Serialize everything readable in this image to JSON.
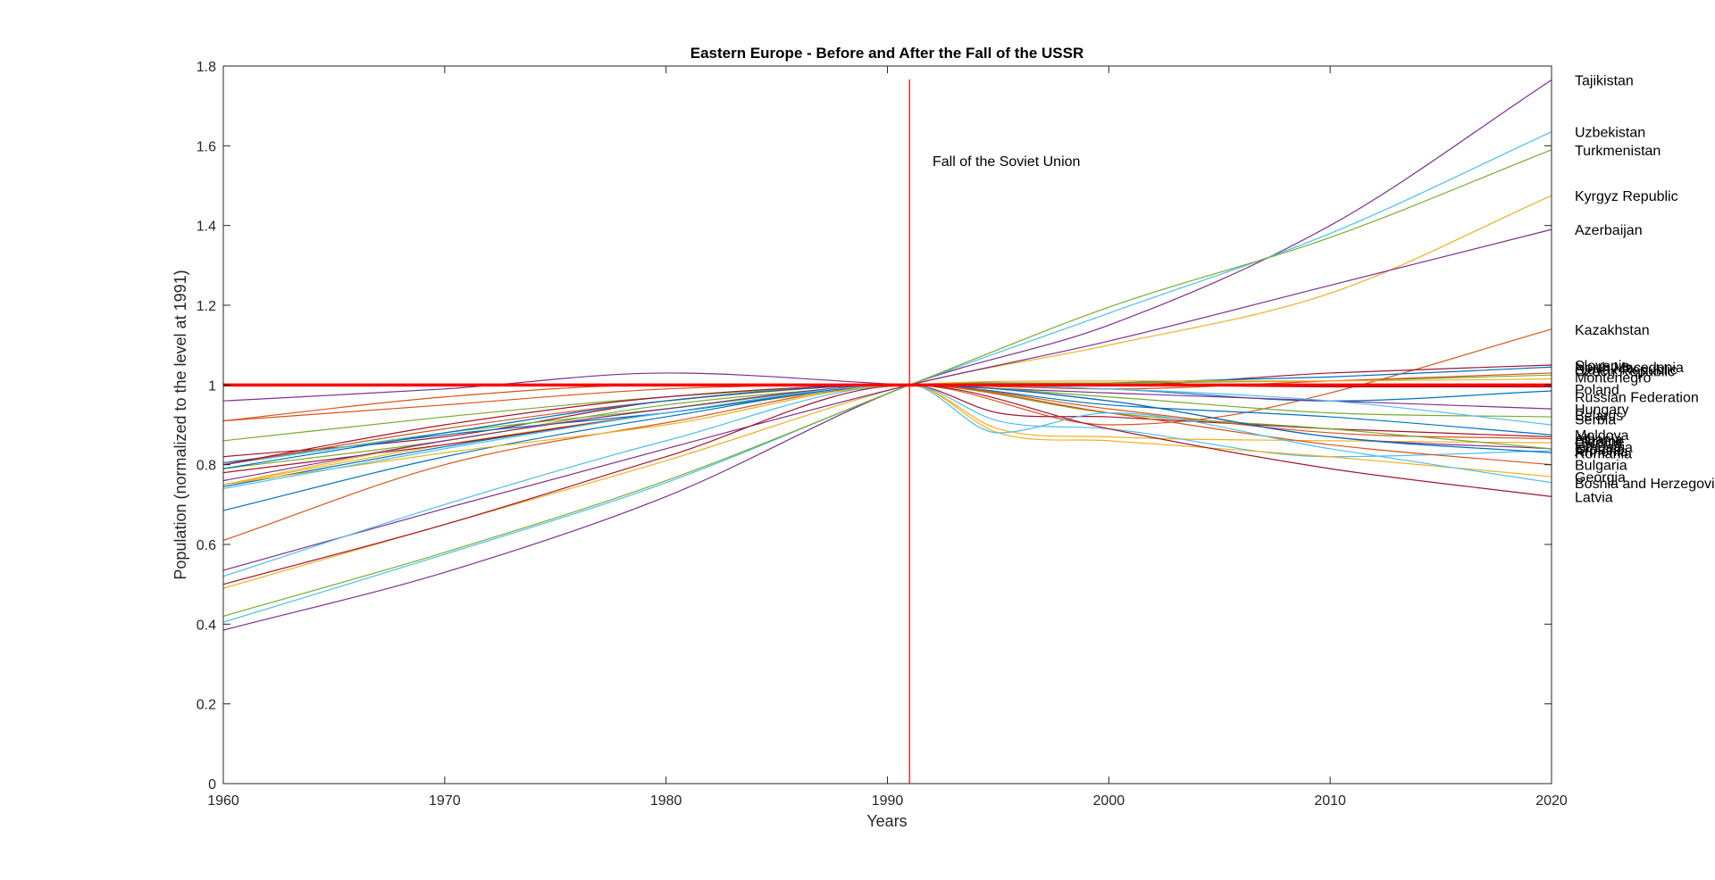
{
  "chart_data": {
    "type": "line",
    "title": "Eastern Europe - Before and After the Fall of the USSR",
    "xlabel": "Years",
    "ylabel": "Population (normalized to the level at 1991)",
    "xlim": [
      1960,
      2020
    ],
    "ylim": [
      0,
      1.8
    ],
    "xticks": [
      "1960",
      "1970",
      "1980",
      "1990",
      "2000",
      "2010",
      "2020"
    ],
    "yticks": [
      "0",
      "0.2",
      "0.4",
      "0.6",
      "0.8",
      "1",
      "1.2",
      "1.4",
      "1.6",
      "1.8"
    ],
    "grid": false,
    "reference_line": {
      "y": 1,
      "color": "#ff0000"
    },
    "event_line": {
      "x": 1991,
      "color": "#ff0000",
      "label": "Fall of the Soviet Union"
    },
    "series": [
      {
        "name": "Tajikistan",
        "color": "#7e2f8e",
        "x": [
          1960,
          1970,
          1980,
          1991,
          2000,
          2010,
          2020
        ],
        "y": [
          0.385,
          0.53,
          0.72,
          1.0,
          1.15,
          1.4,
          1.765
        ]
      },
      {
        "name": "Uzbekistan",
        "color": "#4dbeee",
        "x": [
          1960,
          1970,
          1980,
          1991,
          2000,
          2010,
          2020
        ],
        "y": [
          0.405,
          0.575,
          0.755,
          1.0,
          1.18,
          1.38,
          1.635
        ]
      },
      {
        "name": "Turkmenistan",
        "color": "#77ac30",
        "x": [
          1960,
          1970,
          1980,
          1991,
          2000,
          2010,
          2020
        ],
        "y": [
          0.42,
          0.58,
          0.76,
          1.0,
          1.195,
          1.37,
          1.59
        ]
      },
      {
        "name": "Kyrgyz Republic",
        "color": "#edb120",
        "x": [
          1960,
          1970,
          1980,
          1991,
          2000,
          2010,
          2020
        ],
        "y": [
          0.49,
          0.65,
          0.81,
          1.0,
          1.1,
          1.23,
          1.475
        ]
      },
      {
        "name": "Azerbaijan",
        "color": "#7e2f8e",
        "x": [
          1960,
          1970,
          1980,
          1991,
          2000,
          2010,
          2020
        ],
        "y": [
          0.535,
          0.69,
          0.84,
          1.0,
          1.11,
          1.25,
          1.39
        ]
      },
      {
        "name": "Kazakhstan",
        "color": "#d95319",
        "x": [
          1960,
          1970,
          1980,
          1991,
          2000,
          2005,
          2010,
          2020
        ],
        "y": [
          0.61,
          0.8,
          0.905,
          1.0,
          0.9,
          0.92,
          0.98,
          1.14
        ]
      },
      {
        "name": "Slovenia",
        "color": "#a2142f",
        "x": [
          1960,
          1970,
          1980,
          1991,
          2000,
          2010,
          2020
        ],
        "y": [
          0.82,
          0.87,
          0.96,
          1.0,
          1.0,
          1.03,
          1.05
        ]
      },
      {
        "name": "North Macedonia",
        "color": "#0072bd",
        "x": [
          1960,
          1970,
          1980,
          1991,
          2000,
          2010,
          2020
        ],
        "y": [
          0.745,
          0.845,
          0.93,
          1.0,
          1.005,
          1.02,
          1.045
        ]
      },
      {
        "name": "Slovak Republic",
        "color": "#77ac30",
        "x": [
          1960,
          1970,
          1980,
          1991,
          2000,
          2010,
          2020
        ],
        "y": [
          0.79,
          0.86,
          0.95,
          1.0,
          1.005,
          1.01,
          1.025
        ]
      },
      {
        "name": "Czech Republic",
        "color": "#d95319",
        "x": [
          1960,
          1970,
          1980,
          1991,
          2000,
          2010,
          2020
        ],
        "y": [
          0.91,
          0.95,
          0.99,
          1.0,
          0.99,
          1.01,
          1.03
        ]
      },
      {
        "name": "Montenegro",
        "color": "#edb120",
        "x": [
          1960,
          1970,
          1980,
          1991,
          2000,
          2010,
          2020
        ],
        "y": [
          0.75,
          0.85,
          0.93,
          1.0,
          1.01,
          1.01,
          1.015
        ]
      },
      {
        "name": "Poland",
        "color": "#a2142f",
        "x": [
          1960,
          1970,
          1980,
          1991,
          2000,
          2010,
          2020
        ],
        "y": [
          0.78,
          0.85,
          0.93,
          1.0,
          1.0,
          0.995,
          0.995
        ]
      },
      {
        "name": "Russian Federation",
        "color": "#0072bd",
        "x": [
          1960,
          1970,
          1980,
          1991,
          2000,
          2010,
          2020
        ],
        "y": [
          0.805,
          0.875,
          0.93,
          1.0,
          0.99,
          0.96,
          0.985
        ]
      },
      {
        "name": "Hungary",
        "color": "#7e2f8e",
        "x": [
          1960,
          1970,
          1980,
          1991,
          2000,
          2010,
          2020
        ],
        "y": [
          0.96,
          0.99,
          1.03,
          1.0,
          0.98,
          0.96,
          0.94
        ]
      },
      {
        "name": "Belarus",
        "color": "#77ac30",
        "x": [
          1960,
          1970,
          1980,
          1991,
          2000,
          2010,
          2020
        ],
        "y": [
          0.8,
          0.88,
          0.94,
          1.0,
          0.97,
          0.93,
          0.92
        ]
      },
      {
        "name": "Serbia",
        "color": "#4dbeee",
        "x": [
          1960,
          1970,
          1980,
          1991,
          2000,
          2010,
          2020
        ],
        "y": [
          0.8,
          0.88,
          0.96,
          1.0,
          0.99,
          0.96,
          0.9
        ]
      },
      {
        "name": "Moldova",
        "color": "#0072bd",
        "x": [
          1960,
          1970,
          1980,
          1991,
          2000,
          2010,
          2020
        ],
        "y": [
          0.685,
          0.82,
          0.92,
          1.0,
          0.95,
          0.92,
          0.875
        ]
      },
      {
        "name": "Albania",
        "color": "#a2142f",
        "x": [
          1960,
          1970,
          1980,
          1991,
          1995,
          2000,
          2010,
          2020
        ],
        "y": [
          0.5,
          0.65,
          0.82,
          1.0,
          0.93,
          0.92,
          0.89,
          0.87
        ]
      },
      {
        "name": "Ukraine",
        "color": "#d95319",
        "x": [
          1960,
          1970,
          1980,
          1991,
          2000,
          2010,
          2020
        ],
        "y": [
          0.8,
          0.89,
          0.96,
          1.0,
          0.94,
          0.88,
          0.865
        ]
      },
      {
        "name": "Estonia",
        "color": "#edb120",
        "x": [
          1960,
          1970,
          1980,
          1991,
          1995,
          2000,
          2010,
          2020
        ],
        "y": [
          0.75,
          0.86,
          0.94,
          1.0,
          0.89,
          0.87,
          0.86,
          0.855
        ]
      },
      {
        "name": "Lithuania",
        "color": "#7e2f8e",
        "x": [
          1960,
          1970,
          1980,
          1991,
          2000,
          2010,
          2020
        ],
        "y": [
          0.76,
          0.86,
          0.94,
          1.0,
          0.96,
          0.87,
          0.84
        ]
      },
      {
        "name": "Croatia",
        "color": "#77ac30",
        "x": [
          1960,
          1970,
          1980,
          1991,
          2000,
          2010,
          2020
        ],
        "y": [
          0.86,
          0.92,
          0.97,
          1.0,
          0.93,
          0.89,
          0.84
        ]
      },
      {
        "name": "Armenia",
        "color": "#4dbeee",
        "x": [
          1960,
          1970,
          1980,
          1991,
          1995,
          2000,
          2010,
          2020
        ],
        "y": [
          0.52,
          0.7,
          0.86,
          1.0,
          0.91,
          0.89,
          0.82,
          0.835
        ]
      },
      {
        "name": "Romania",
        "color": "#0072bd",
        "x": [
          1960,
          1970,
          1980,
          1991,
          2000,
          2010,
          2020
        ],
        "y": [
          0.79,
          0.88,
          0.96,
          1.0,
          0.96,
          0.87,
          0.83
        ]
      },
      {
        "name": "Bulgaria",
        "color": "#d95319",
        "x": [
          1960,
          1970,
          1980,
          1991,
          2000,
          2010,
          2020
        ],
        "y": [
          0.91,
          0.97,
          1.0,
          1.0,
          0.93,
          0.85,
          0.8
        ]
      },
      {
        "name": "Georgia",
        "color": "#edb120",
        "x": [
          1960,
          1970,
          1980,
          1991,
          1995,
          2000,
          2010,
          2020
        ],
        "y": [
          0.75,
          0.83,
          0.9,
          1.0,
          0.88,
          0.86,
          0.82,
          0.77
        ]
      },
      {
        "name": "Bosnia and Herzegovina",
        "color": "#4dbeee",
        "x": [
          1960,
          1970,
          1980,
          1991,
          1995,
          2000,
          2010,
          2020
        ],
        "y": [
          0.74,
          0.84,
          0.93,
          1.0,
          0.88,
          0.93,
          0.84,
          0.755
        ]
      },
      {
        "name": "Latvia",
        "color": "#a2142f",
        "x": [
          1960,
          1970,
          1980,
          1991,
          2000,
          2010,
          2020
        ],
        "y": [
          0.8,
          0.9,
          0.97,
          1.0,
          0.89,
          0.79,
          0.72
        ]
      }
    ],
    "end_labels": [
      {
        "text": "Tajikistan",
        "y": 1.765
      },
      {
        "text": "Uzbekistan",
        "y": 1.635
      },
      {
        "text": "Turkmenistan",
        "y": 1.59
      },
      {
        "text": "Kyrgyz Republic",
        "y": 1.475
      },
      {
        "text": "Azerbaijan",
        "y": 1.39
      },
      {
        "text": "Kazakhstan",
        "y": 1.14
      },
      {
        "text": "Slovenia",
        "y": 1.05
      },
      {
        "text": "North Macedonia",
        "y": 1.045
      },
      {
        "text": "Slovak Republic",
        "y": 1.04
      },
      {
        "text": "Czech Republic",
        "y": 1.035
      },
      {
        "text": "Montenegro",
        "y": 1.02
      },
      {
        "text": "Poland",
        "y": 0.99
      },
      {
        "text": "Russian Federation",
        "y": 0.97
      },
      {
        "text": "Hungary",
        "y": 0.94
      },
      {
        "text": "Belarus",
        "y": 0.925
      },
      {
        "text": "Serbia",
        "y": 0.915
      },
      {
        "text": "Moldova",
        "y": 0.875
      },
      {
        "text": "Albania",
        "y": 0.865
      },
      {
        "text": "Ukraine",
        "y": 0.86
      },
      {
        "text": "Estonia",
        "y": 0.855
      },
      {
        "text": "Lithuania",
        "y": 0.845
      },
      {
        "text": "Croatia",
        "y": 0.84
      },
      {
        "text": "Armenia",
        "y": 0.835
      },
      {
        "text": "Romania",
        "y": 0.83
      },
      {
        "text": "Bulgaria",
        "y": 0.8
      },
      {
        "text": "Georgia",
        "y": 0.77
      },
      {
        "text": "Bosnia and Herzegovina",
        "y": 0.755
      },
      {
        "text": "Latvia",
        "y": 0.72
      }
    ]
  }
}
